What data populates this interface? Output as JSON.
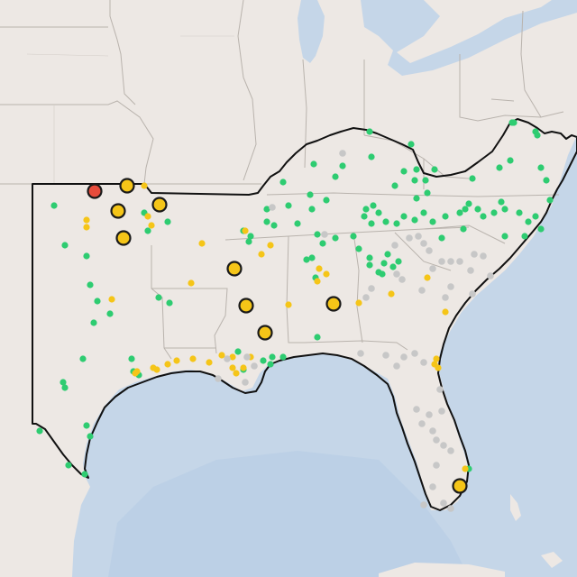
{
  "map": {
    "colors": {
      "land": "#ede8e4",
      "water": "#c5d6e8",
      "deep_water": "#bcd0e6",
      "state_border": "#b9b3ad",
      "region_outline": "#111111",
      "marker_green": "#2ecc71",
      "marker_yellow": "#f5c518",
      "marker_gray": "#c7c7c7",
      "marker_red": "#e74c3c"
    },
    "small_marker_groups": [
      {
        "name": "green",
        "color": "#2ecc71"
      },
      {
        "name": "yellow",
        "color": "#f5c518"
      },
      {
        "name": "gray",
        "color": "#c7c7c7"
      }
    ],
    "large_marker_groups": [
      {
        "name": "yellow",
        "color": "#f5c518"
      },
      {
        "name": "red",
        "color": "#e74c3c"
      }
    ]
  }
}
